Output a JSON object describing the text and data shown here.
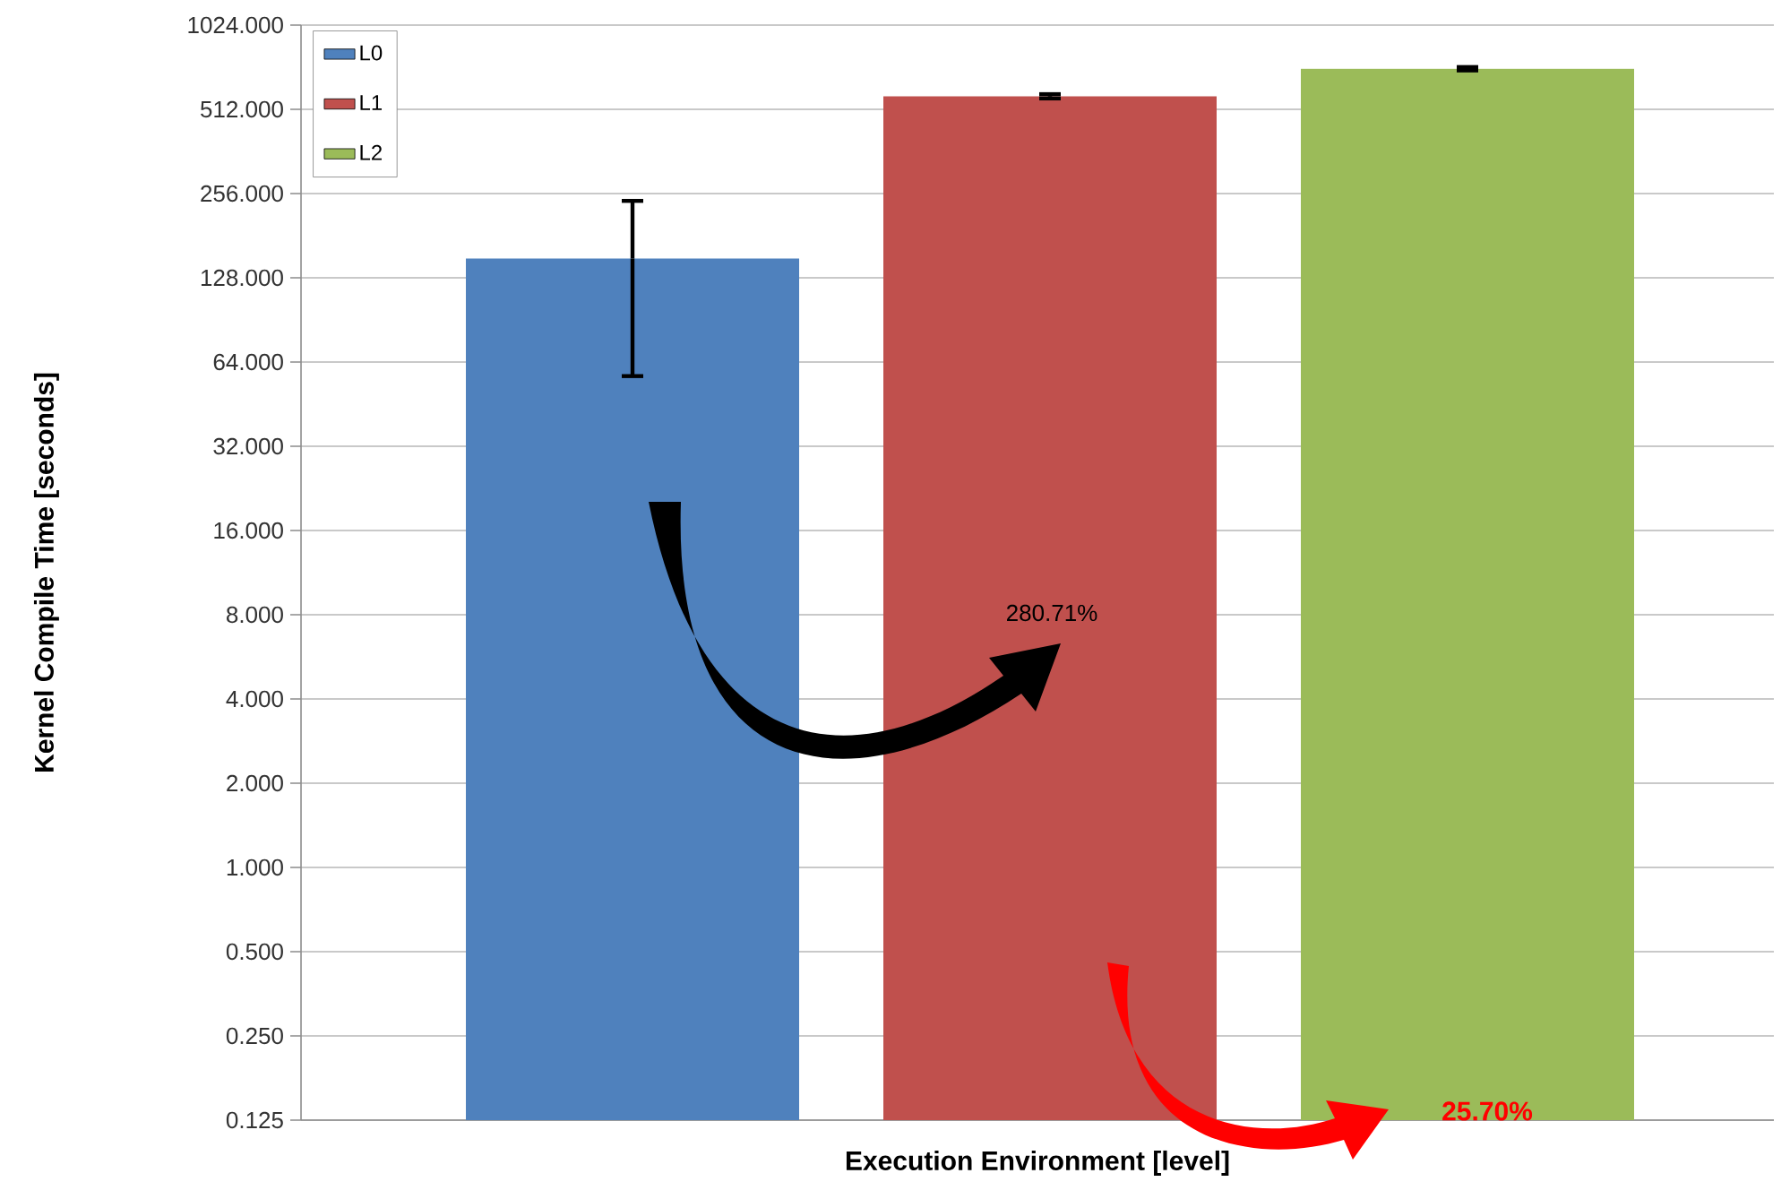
{
  "chart_data": {
    "type": "bar",
    "xlabel": "Execution Environment [level]",
    "ylabel": "Kernel Compile Time [seconds]",
    "categories": [
      null
    ],
    "series": [
      {
        "name": "L0",
        "color": "#4f81bd",
        "values": [
          150
        ],
        "errors": [
          [
            57,
            241
          ]
        ]
      },
      {
        "name": "L1",
        "color": "#c0504d",
        "values": [
          570
        ],
        "errors": [
          10
        ]
      },
      {
        "name": "L2",
        "color": "#9bbb59",
        "values": [
          715
        ],
        "errors": [
          10
        ]
      }
    ],
    "log": "y",
    "ylim": [
      0.125,
      1024
    ],
    "yticks": [
      {
        "value": 0.125,
        "label": "0.125"
      },
      {
        "value": 0.25,
        "label": "0.250"
      },
      {
        "value": 0.5,
        "label": "0.500"
      },
      {
        "value": 1,
        "label": "1.000"
      },
      {
        "value": 2,
        "label": "2.000"
      },
      {
        "value": 4,
        "label": "4.000"
      },
      {
        "value": 8,
        "label": "8.000"
      },
      {
        "value": 16,
        "label": "16.000"
      },
      {
        "value": 32,
        "label": "32.000"
      },
      {
        "value": 64,
        "label": "64.000"
      },
      {
        "value": 128,
        "label": "128.000"
      },
      {
        "value": 256,
        "label": "256.000"
      },
      {
        "value": 512,
        "label": "512.000"
      },
      {
        "value": 1024,
        "label": "1024.000"
      }
    ],
    "grid": "y",
    "legend": "top left",
    "annotations": [
      "280.71%",
      "25.70%"
    ]
  }
}
